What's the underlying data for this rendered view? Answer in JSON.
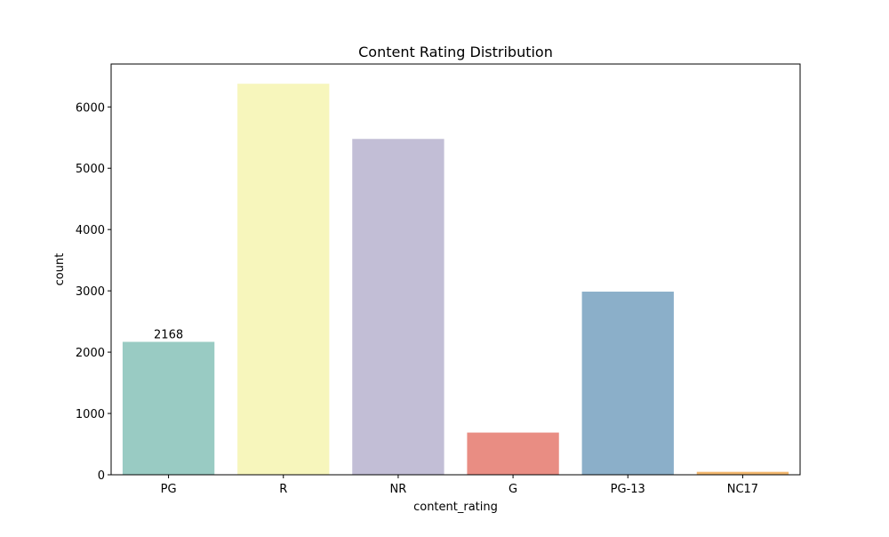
{
  "chart_data": {
    "type": "bar",
    "title": "Content Rating Distribution",
    "xlabel": "content_rating",
    "ylabel": "count",
    "categories": [
      "PG",
      "R",
      "NR",
      "G",
      "PG-13",
      "NC17"
    ],
    "values": [
      2168,
      6378,
      5478,
      688,
      2987,
      48
    ],
    "colors": [
      "#99cbc3",
      "#f7f6bc",
      "#c2bed6",
      "#e98d83",
      "#8bafc9",
      "#f2b76e"
    ],
    "ylim": [
      0,
      6700
    ],
    "yticks": [
      0,
      1000,
      2000,
      3000,
      4000,
      5000,
      6000
    ],
    "data_labels": [
      {
        "category": "PG",
        "text": "2168"
      }
    ],
    "grid": false,
    "legend": "none"
  }
}
